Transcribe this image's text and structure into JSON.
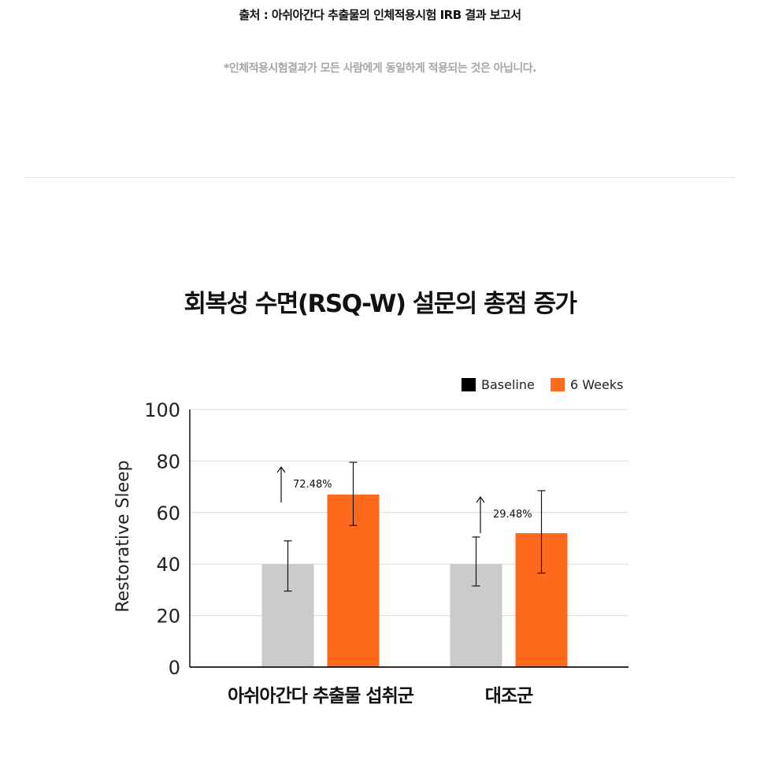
{
  "source": "출처 : 아쉬아간다 추출물의 인체적용시험 IRB 결과 보고서",
  "disclaimer": "*인체적용시험결과가 모든 사람에게 동일하게 적용되는 것은 아닙니다.",
  "colors": {
    "baseline": "#cbcbcb",
    "weeks6": "#fe6a1b",
    "legend_baseline": "#000000",
    "grid": "#d9d9d9",
    "axis": "#111111"
  },
  "chart_data": {
    "type": "bar",
    "title": "회복성 수면(RSQ-W) 설문의 총점 증가",
    "ylabel": "Restorative Sleep",
    "xlabel": "",
    "ylim": [
      0,
      100
    ],
    "yticks": [
      0,
      20,
      40,
      60,
      80,
      100
    ],
    "grid": true,
    "legend_position": "top-right",
    "categories": [
      "아쉬아간다 추출물 섭취군",
      "대조군"
    ],
    "series": [
      {
        "name": "Baseline",
        "values": [
          40,
          40
        ],
        "error_low": [
          29.5,
          31.5
        ],
        "error_high": [
          49,
          50.5
        ]
      },
      {
        "name": "6 Weeks",
        "values": [
          67,
          52
        ],
        "error_low": [
          55,
          36.5
        ],
        "error_high": [
          79.5,
          68.5
        ]
      }
    ],
    "annotations": [
      "72.48%",
      "29.48%"
    ]
  }
}
